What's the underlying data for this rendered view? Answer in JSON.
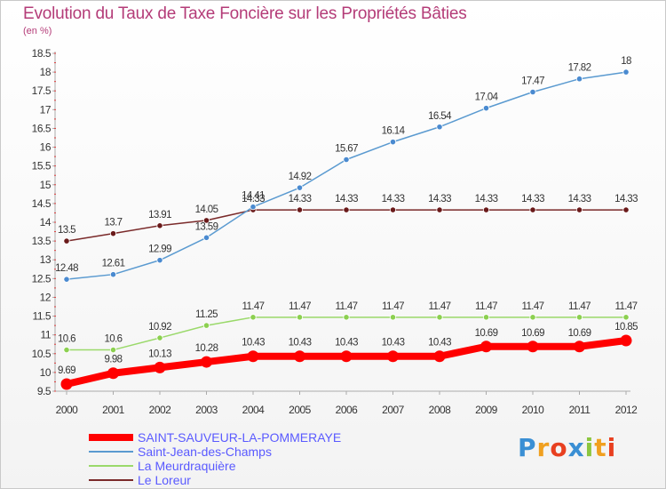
{
  "header": {
    "title": "Evolution du Taux de Taxe Foncière sur les Propriétés Bâties",
    "subtitle": "(en %)"
  },
  "brand": {
    "text": "Proxiti",
    "colors": [
      "#3a8fd4",
      "#f0a020",
      "#e84020",
      "#3a8fd4",
      "#8cc63f",
      "#f0a020",
      "#e84020"
    ]
  },
  "chart_data": {
    "type": "line",
    "x": [
      2000,
      2001,
      2002,
      2003,
      2004,
      2005,
      2006,
      2007,
      2008,
      2009,
      2010,
      2011,
      2012
    ],
    "ylim": [
      9.5,
      18.5
    ],
    "yticks": [
      "9.5",
      "10",
      "10.5",
      "11",
      "11.5",
      "12",
      "12.5",
      "13",
      "13.5",
      "14",
      "14.5",
      "15",
      "15.5",
      "16",
      "16.5",
      "17",
      "17.5",
      "18",
      "18.5"
    ],
    "grid": false,
    "legend_position": "bottom-left",
    "series": [
      {
        "name": "SAINT-SAUVEUR-LA-POMMERAYE",
        "color": "#ff0000",
        "width": 8,
        "values": [
          9.69,
          9.98,
          10.13,
          10.28,
          10.43,
          10.43,
          10.43,
          10.43,
          10.43,
          10.69,
          10.69,
          10.69,
          10.85
        ],
        "labels": [
          "9.69",
          "9.98",
          "10.13",
          "10.28",
          "10.43",
          "10.43",
          "10.43",
          "10.43",
          "10.43",
          "10.69",
          "10.69",
          "10.69",
          "10.85"
        ]
      },
      {
        "name": "Saint-Jean-des-Champs",
        "color": "#5a9ad0",
        "width": 1.5,
        "values": [
          12.48,
          12.61,
          12.99,
          13.59,
          14.41,
          14.92,
          15.67,
          16.14,
          16.54,
          17.04,
          17.47,
          17.82,
          18
        ],
        "labels": [
          "12.48",
          "12.61",
          "12.99",
          "13.59",
          "14.41",
          "14.92",
          "15.67",
          "16.14",
          "16.54",
          "17.04",
          "17.47",
          "17.82",
          "18"
        ]
      },
      {
        "name": "La Meurdraquière",
        "color": "#9ad96a",
        "width": 1.5,
        "values": [
          10.6,
          10.6,
          10.92,
          11.25,
          11.47,
          11.47,
          11.47,
          11.47,
          11.47,
          11.47,
          11.47,
          11.47,
          11.47
        ],
        "labels": [
          "10.6",
          "10.6",
          "10.92",
          "11.25",
          "11.47",
          "11.47",
          "11.47",
          "11.47",
          "11.47",
          "11.47",
          "11.47",
          "11.47",
          "11.47"
        ]
      },
      {
        "name": "Le Loreur",
        "color": "#7a2a2a",
        "width": 1.5,
        "values": [
          13.5,
          13.7,
          13.91,
          14.05,
          14.33,
          14.33,
          14.33,
          14.33,
          14.33,
          14.33,
          14.33,
          14.33,
          14.33
        ],
        "labels": [
          "13.5",
          "13.7",
          "13.91",
          "14.05",
          "14.33",
          "14.33",
          "14.33",
          "14.33",
          "14.33",
          "14.33",
          "14.33",
          "14.33",
          "14.33"
        ]
      }
    ]
  }
}
